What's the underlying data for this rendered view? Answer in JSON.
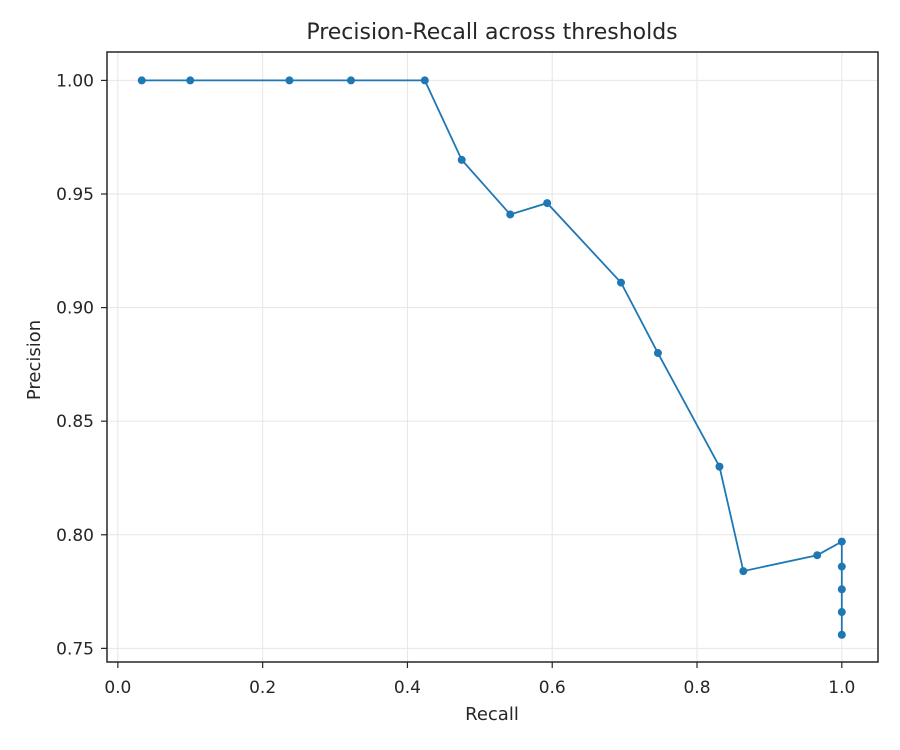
{
  "chart_data": {
    "type": "line",
    "title": "Precision-Recall across thresholds",
    "xlabel": "Recall",
    "ylabel": "Precision",
    "xlim": [
      -0.015,
      1.05
    ],
    "ylim": [
      0.744,
      1.0125
    ],
    "xticks": [
      0.0,
      0.2,
      0.4,
      0.6,
      0.8,
      1.0
    ],
    "xtick_labels": [
      "0.0",
      "0.2",
      "0.4",
      "0.6",
      "0.8",
      "1.0"
    ],
    "yticks": [
      0.75,
      0.8,
      0.85,
      0.9,
      0.95,
      1.0
    ],
    "ytick_labels": [
      "0.75",
      "0.80",
      "0.85",
      "0.90",
      "0.95",
      "1.00"
    ],
    "grid": true,
    "series": [
      {
        "color": "#1f77b4",
        "marker": "circle",
        "x": [
          0.033,
          0.1,
          0.237,
          0.322,
          0.424,
          0.475,
          0.542,
          0.593,
          0.695,
          0.746,
          0.831,
          0.864,
          0.966,
          1.0,
          1.0,
          1.0,
          1.0,
          1.0
        ],
        "y": [
          1.0,
          1.0,
          1.0,
          1.0,
          1.0,
          0.965,
          0.941,
          0.946,
          0.911,
          0.88,
          0.83,
          0.784,
          0.791,
          0.797,
          0.786,
          0.776,
          0.766,
          0.756
        ]
      }
    ]
  }
}
